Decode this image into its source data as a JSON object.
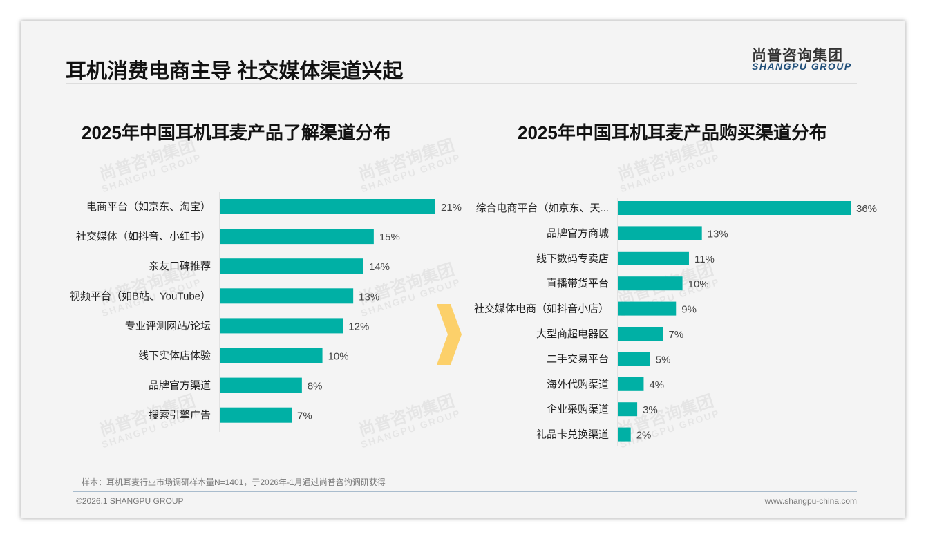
{
  "header": {
    "title": "耳机消费电商主导 社交媒体渠道兴起",
    "logo_cn": "尚普咨询集团",
    "logo_en": "SHANGPU GROUP"
  },
  "watermark": {
    "cn": "尚普咨询集团",
    "en": "SHANGPU GROUP"
  },
  "footer": {
    "note": "样本：耳机耳麦行业市场调研样本量N=1401，于2026年-1月通过尚普咨询调研获得",
    "copyright": "©2026.1 SHANGPU GROUP",
    "website": "www.shangpu-china.com"
  },
  "colors": {
    "bar": "#00b0a5",
    "arrow": "#fcd06a"
  },
  "chart_data": [
    {
      "type": "bar",
      "orientation": "horizontal",
      "title": "2025年中国耳机耳麦产品了解渠道分布",
      "unit": "%",
      "categories": [
        "电商平台（如京东、淘宝）",
        "社交媒体（如抖音、小红书）",
        "亲友口碑推荐",
        "视频平台（如B站、YouTube）",
        "专业评测网站/论坛",
        "线下实体店体验",
        "品牌官方渠道",
        "搜索引擎广告"
      ],
      "values": [
        21,
        15,
        14,
        13,
        12,
        10,
        8,
        7
      ],
      "xlim": [
        0,
        21
      ]
    },
    {
      "type": "bar",
      "orientation": "horizontal",
      "title": "2025年中国耳机耳麦产品购买渠道分布",
      "unit": "%",
      "categories": [
        "综合电商平台（如京东、天...",
        "品牌官方商城",
        "线下数码专卖店",
        "直播带货平台",
        "社交媒体电商（如抖音小店）",
        "大型商超电器区",
        "二手交易平台",
        "海外代购渠道",
        "企业采购渠道",
        "礼品卡兑换渠道"
      ],
      "values": [
        36,
        13,
        11,
        10,
        9,
        7,
        5,
        4,
        3,
        2
      ],
      "xlim": [
        0,
        36
      ]
    }
  ]
}
